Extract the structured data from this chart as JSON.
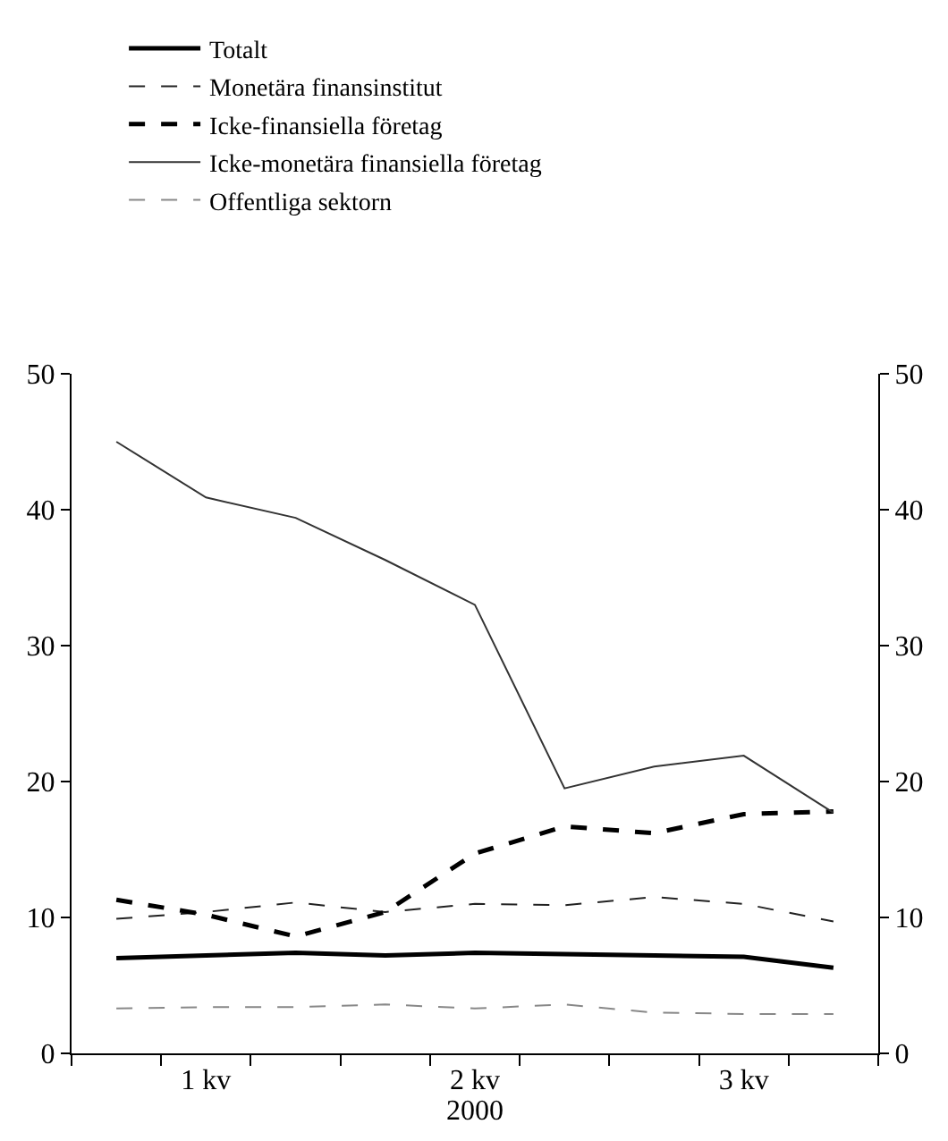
{
  "chart_data": {
    "type": "line",
    "xlabel": "2000",
    "categories": [
      null,
      "1 kv",
      null,
      null,
      "2 kv",
      null,
      null,
      "3 kv",
      null
    ],
    "ylim": [
      0,
      50
    ],
    "yticks": [
      0,
      10,
      20,
      30,
      40,
      50
    ],
    "y2lim": [
      0,
      50
    ],
    "y2ticks": [
      0,
      10,
      20,
      30,
      40,
      50
    ],
    "legend": "top left",
    "marker": "none",
    "series": [
      {
        "name": "Totalt",
        "color": "#000000",
        "line_style": "solid",
        "values": [
          7.0,
          7.2,
          7.4,
          7.2,
          7.4,
          7.3,
          7.2,
          7.1,
          6.3
        ]
      },
      {
        "name": "Monetära finansinstitut",
        "color": "#222222",
        "line_style": "dashed",
        "values": [
          9.9,
          10.4,
          11.1,
          10.4,
          11.0,
          10.9,
          11.5,
          11.0,
          9.7
        ]
      },
      {
        "name": "Icke-finansiella företag",
        "color": "#000000",
        "line_style": "dashed",
        "values": [
          11.3,
          10.2,
          8.6,
          10.4,
          14.7,
          16.7,
          16.2,
          17.6,
          17.8
        ]
      },
      {
        "name": "Icke-monetära finansiella företag",
        "color": "#333333",
        "line_style": "solid",
        "values": [
          45.0,
          40.9,
          39.4,
          36.3,
          33.0,
          19.5,
          21.1,
          21.9,
          17.7
        ]
      },
      {
        "name": "Offentliga sektorn",
        "color": "#888888",
        "line_style": "dashed",
        "values": [
          3.3,
          3.4,
          3.4,
          3.6,
          3.3,
          3.6,
          3.0,
          2.9,
          2.9
        ]
      }
    ]
  }
}
